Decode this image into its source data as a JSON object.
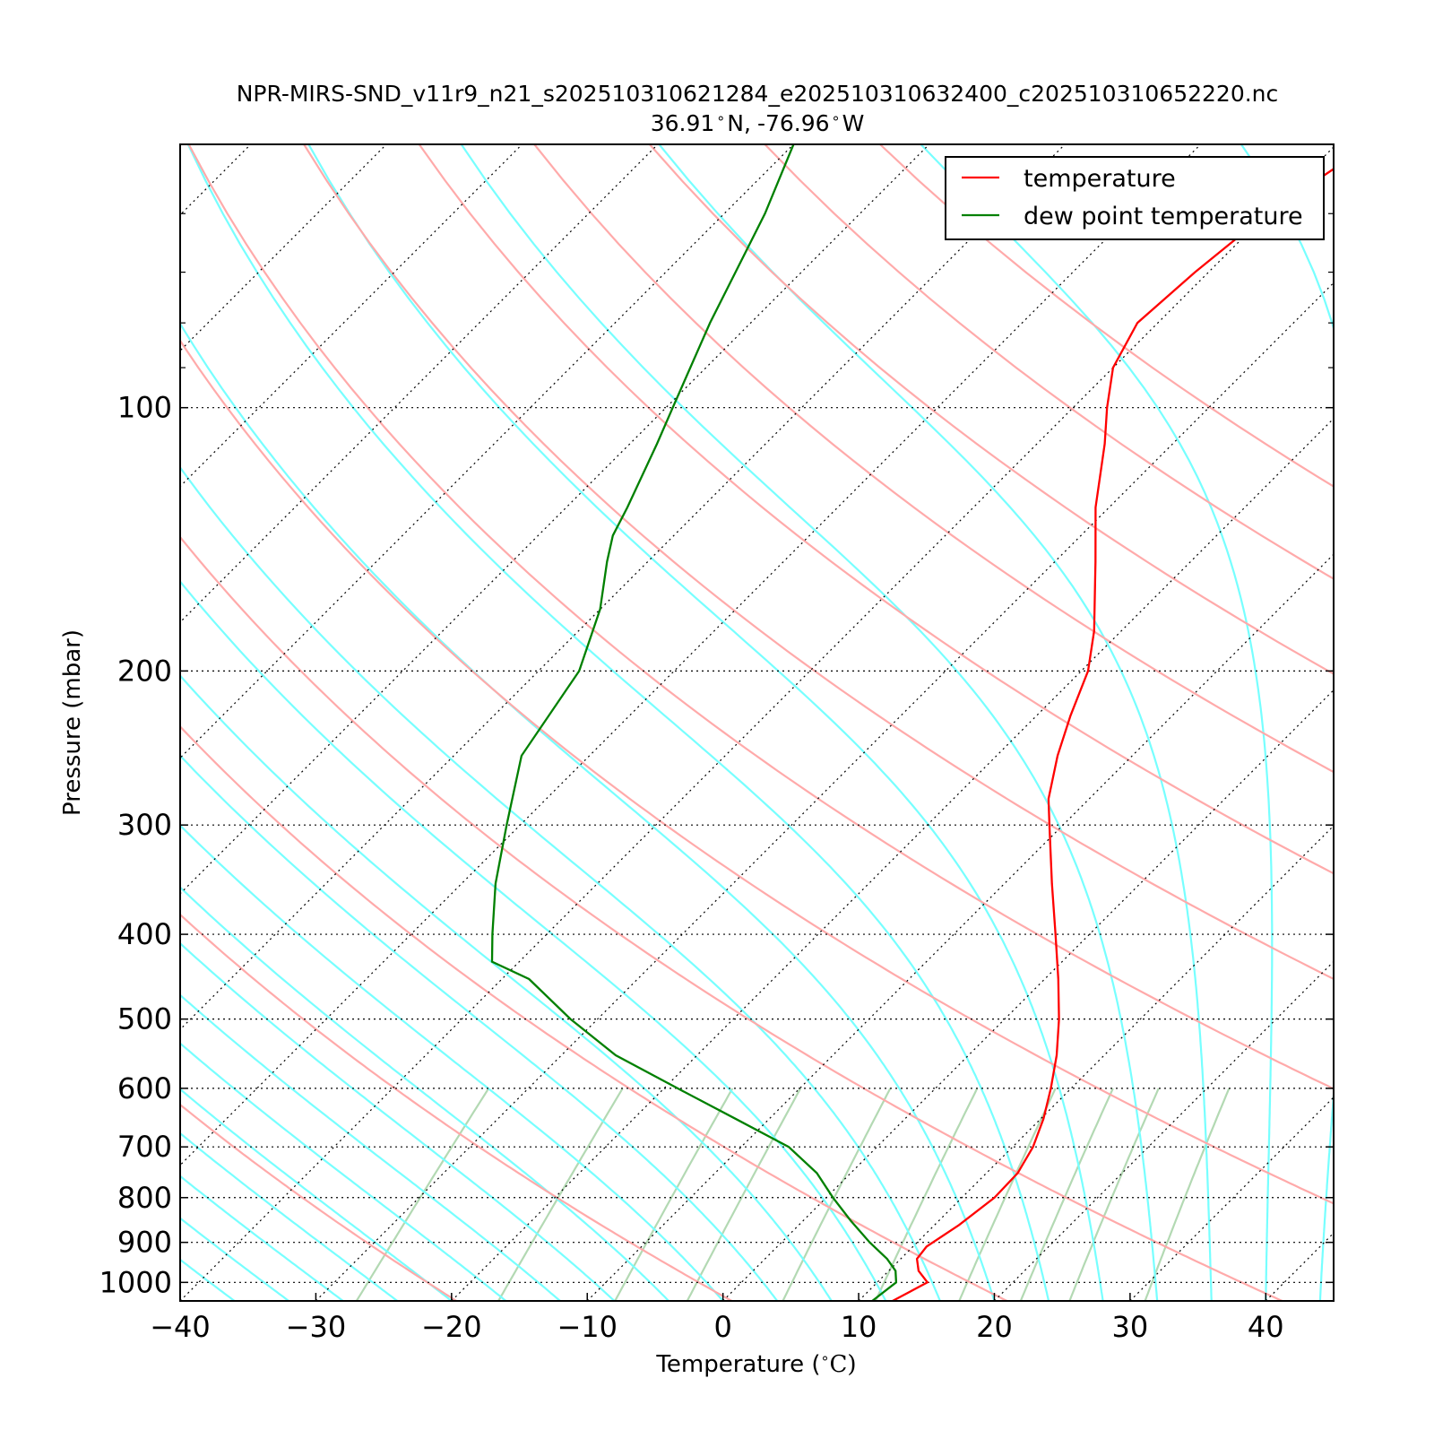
{
  "chart_data": {
    "type": "line",
    "title": "NPR-MIRS-SND_v11r9_n21_s202510310621284_e202510310632400_c202510310652220.nc",
    "subtitle_lat": "36.91",
    "subtitle_lat_unit": "N,",
    "subtitle_lon": "-76.96",
    "subtitle_lon_unit": "W",
    "xlabel_prefix": "Temperature (",
    "xlabel_unit": "C)",
    "ylabel": "Pressure (mbar)",
    "x_ticks": [
      "−40",
      "−30",
      "−20",
      "−10",
      "0",
      "10",
      "20",
      "30",
      "40"
    ],
    "x_tick_values": [
      -40,
      -30,
      -20,
      -10,
      0,
      10,
      20,
      30,
      40
    ],
    "xlim": [
      -40,
      45
    ],
    "y_scale": "log",
    "ylim": [
      1050,
      50
    ],
    "y_ticks": [
      "100",
      "200",
      "300",
      "400",
      "500",
      "600",
      "700",
      "800",
      "900",
      "1000"
    ],
    "y_tick_values": [
      100,
      200,
      300,
      400,
      500,
      600,
      700,
      800,
      900,
      1000
    ],
    "skew": "skew-T log-p",
    "grid": "dotted isobars and isotherms",
    "legend_position": "top-right",
    "series": [
      {
        "name": "temperature",
        "color": "#ff0000",
        "points": [
          {
            "p": 1050,
            "t": 12.5
          },
          {
            "p": 1000,
            "t": 13.7
          },
          {
            "p": 970,
            "t": 12.2
          },
          {
            "p": 940,
            "t": 11.2
          },
          {
            "p": 910,
            "t": 11.0
          },
          {
            "p": 860,
            "t": 11.8
          },
          {
            "p": 800,
            "t": 12.4
          },
          {
            "p": 750,
            "t": 12.3
          },
          {
            "p": 700,
            "t": 11.5
          },
          {
            "p": 650,
            "t": 10.2
          },
          {
            "p": 600,
            "t": 8.5
          },
          {
            "p": 550,
            "t": 6.5
          },
          {
            "p": 500,
            "t": 4.0
          },
          {
            "p": 450,
            "t": 1.0
          },
          {
            "p": 400,
            "t": -2.5
          },
          {
            "p": 350,
            "t": -6.5
          },
          {
            "p": 300,
            "t": -11.0
          },
          {
            "p": 280,
            "t": -13.0
          },
          {
            "p": 250,
            "t": -15.5
          },
          {
            "p": 225,
            "t": -17.5
          },
          {
            "p": 200,
            "t": -19.5
          },
          {
            "p": 180,
            "t": -22.0
          },
          {
            "p": 150,
            "t": -27.0
          },
          {
            "p": 130,
            "t": -31.0
          },
          {
            "p": 110,
            "t": -35.0
          },
          {
            "p": 100,
            "t": -37.5
          },
          {
            "p": 90,
            "t": -40.0
          },
          {
            "p": 80,
            "t": -41.5
          },
          {
            "p": 70,
            "t": -41.0
          },
          {
            "p": 60,
            "t": -40.0
          },
          {
            "p": 50,
            "t": -37.5
          }
        ]
      },
      {
        "name": "dew point temperature",
        "color": "#008000",
        "points": [
          {
            "p": 1050,
            "t": 11.0
          },
          {
            "p": 1000,
            "t": 11.4
          },
          {
            "p": 970,
            "t": 10.5
          },
          {
            "p": 940,
            "t": 9.0
          },
          {
            "p": 900,
            "t": 6.5
          },
          {
            "p": 850,
            "t": 3.5
          },
          {
            "p": 800,
            "t": 0.5
          },
          {
            "p": 750,
            "t": -2.5
          },
          {
            "p": 700,
            "t": -6.5
          },
          {
            "p": 650,
            "t": -12.5
          },
          {
            "p": 600,
            "t": -19.0
          },
          {
            "p": 550,
            "t": -26.0
          },
          {
            "p": 500,
            "t": -32.0
          },
          {
            "p": 450,
            "t": -38.0
          },
          {
            "p": 430,
            "t": -42.0
          },
          {
            "p": 400,
            "t": -44.0
          },
          {
            "p": 350,
            "t": -47.5
          },
          {
            "p": 300,
            "t": -51.0
          },
          {
            "p": 250,
            "t": -55.0
          },
          {
            "p": 200,
            "t": -57.0
          },
          {
            "p": 170,
            "t": -60.0
          },
          {
            "p": 150,
            "t": -63.0
          },
          {
            "p": 140,
            "t": -64.5
          },
          {
            "p": 130,
            "t": -65.5
          },
          {
            "p": 110,
            "t": -68.0
          },
          {
            "p": 100,
            "t": -69.5
          },
          {
            "p": 80,
            "t": -73.0
          },
          {
            "p": 60,
            "t": -77.0
          },
          {
            "p": 50,
            "t": -80.0
          }
        ]
      }
    ]
  },
  "colors": {
    "dry_adiabat": "#ffaaaa",
    "moist_adiabat": "#77ffff",
    "mixing_ratio": "#99cc99",
    "grid": "#000000",
    "legend_border": "#000000"
  }
}
